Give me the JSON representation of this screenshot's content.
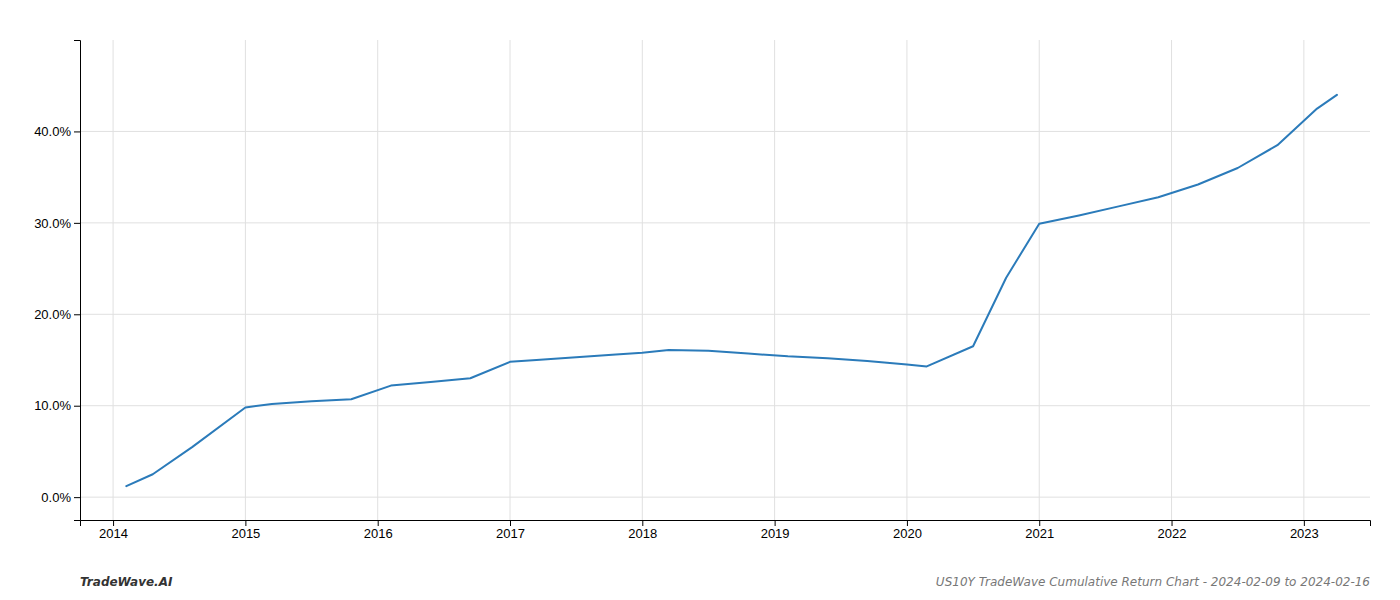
{
  "chart_data": {
    "type": "line",
    "x": [
      2014.1,
      2014.3,
      2014.6,
      2015.0,
      2015.2,
      2015.5,
      2015.8,
      2016.1,
      2016.4,
      2016.7,
      2017.0,
      2017.2,
      2017.5,
      2017.8,
      2018.0,
      2018.2,
      2018.5,
      2018.8,
      2019.1,
      2019.4,
      2019.7,
      2020.0,
      2020.15,
      2020.5,
      2020.75,
      2021.0,
      2021.3,
      2021.6,
      2021.9,
      2022.2,
      2022.5,
      2022.8,
      2023.1,
      2023.25
    ],
    "values": [
      0.012,
      0.025,
      0.055,
      0.098,
      0.102,
      0.105,
      0.107,
      0.122,
      0.126,
      0.13,
      0.148,
      0.15,
      0.153,
      0.156,
      0.158,
      0.161,
      0.16,
      0.157,
      0.154,
      0.152,
      0.149,
      0.145,
      0.143,
      0.165,
      0.24,
      0.299,
      0.308,
      0.318,
      0.328,
      0.342,
      0.36,
      0.385,
      0.425,
      0.44
    ],
    "color": "#2b7bba",
    "xlim": [
      2013.75,
      2023.5
    ],
    "ylim": [
      -0.025,
      0.5
    ],
    "xticks": [
      2014,
      2015,
      2016,
      2017,
      2018,
      2019,
      2020,
      2021,
      2022,
      2023
    ],
    "yticks": [
      {
        "value": 0.0,
        "label": "0.0%"
      },
      {
        "value": 0.1,
        "label": "10.0%"
      },
      {
        "value": 0.2,
        "label": "20.0%"
      },
      {
        "value": 0.3,
        "label": "30.0%"
      },
      {
        "value": 0.4,
        "label": "40.0%"
      }
    ],
    "grid": true,
    "annotations": [
      "TradeWave.AI",
      "US10Y TradeWave Cumulative Return Chart - 2024-02-09 to 2024-02-16"
    ]
  }
}
